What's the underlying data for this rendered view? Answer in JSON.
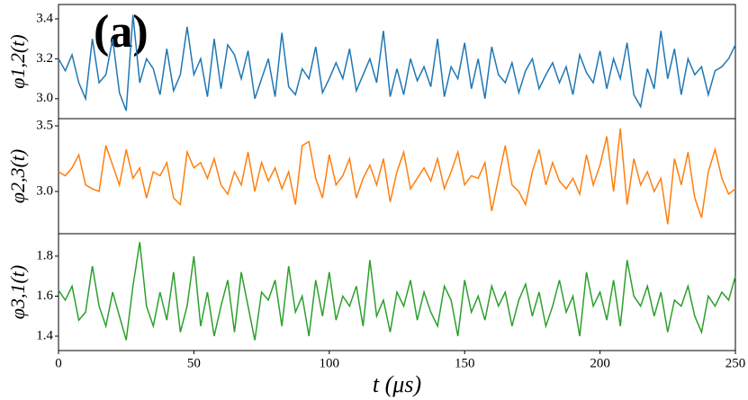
{
  "chart_data": [
    {
      "type": "line",
      "annotation": "(a)",
      "ylabel": "φ1,2(t)",
      "x": [
        0,
        2.5,
        5,
        7.5,
        10,
        12.5,
        15,
        17.5,
        20,
        22.5,
        25,
        27.5,
        30,
        32.5,
        35,
        37.5,
        40,
        42.5,
        45,
        47.5,
        50,
        52.5,
        55,
        57.5,
        60,
        62.5,
        65,
        67.5,
        70,
        72.5,
        75,
        77.5,
        80,
        82.5,
        85,
        87.5,
        90,
        92.5,
        95,
        97.5,
        100,
        102.5,
        105,
        107.5,
        110,
        112.5,
        115,
        117.5,
        120,
        122.5,
        125,
        127.5,
        130,
        132.5,
        135,
        137.5,
        140,
        142.5,
        145,
        147.5,
        150,
        152.5,
        155,
        157.5,
        160,
        162.5,
        165,
        167.5,
        170,
        172.5,
        175,
        177.5,
        180,
        182.5,
        185,
        187.5,
        190,
        192.5,
        195,
        197.5,
        200,
        202.5,
        205,
        207.5,
        210,
        212.5,
        215,
        217.5,
        220,
        222.5,
        225,
        227.5,
        230,
        232.5,
        235,
        237.5,
        240,
        242.5,
        245,
        247.5,
        250
      ],
      "series": [
        {
          "color": "#1f77b4",
          "values": [
            3.2,
            3.14,
            3.22,
            3.08,
            3.0,
            3.3,
            3.08,
            3.12,
            3.3,
            3.03,
            2.94,
            3.42,
            3.08,
            3.2,
            3.15,
            3.02,
            3.25,
            3.04,
            3.12,
            3.36,
            3.12,
            3.2,
            3.01,
            3.3,
            3.05,
            3.27,
            3.22,
            3.1,
            3.24,
            3.0,
            3.1,
            3.2,
            3.01,
            3.33,
            3.06,
            3.02,
            3.15,
            3.1,
            3.26,
            3.03,
            3.1,
            3.18,
            3.1,
            3.25,
            3.04,
            3.12,
            3.2,
            3.08,
            3.34,
            3.01,
            3.15,
            3.02,
            3.2,
            3.09,
            3.16,
            3.06,
            3.3,
            3.01,
            3.16,
            3.1,
            3.28,
            3.05,
            3.2,
            3.0,
            3.26,
            3.12,
            3.08,
            3.18,
            3.03,
            3.14,
            3.2,
            3.05,
            3.12,
            3.18,
            3.08,
            3.16,
            3.02,
            3.22,
            3.13,
            3.08,
            3.24,
            3.05,
            3.2,
            3.1,
            3.28,
            3.02,
            2.96,
            3.15,
            3.05,
            3.34,
            3.1,
            3.25,
            3.02,
            3.2,
            3.12,
            3.16,
            3.02,
            3.14,
            3.16,
            3.2,
            3.27
          ]
        }
      ],
      "xlim": [
        0,
        250
      ],
      "ylim": [
        2.9,
        3.472
      ],
      "yticks": [
        {
          "value": 3,
          "label": "3.0"
        },
        3.2,
        3.4
      ]
    },
    {
      "type": "line",
      "ylabel": "φ2,3(t)",
      "x": [
        0,
        2.5,
        5,
        7.5,
        10,
        12.5,
        15,
        17.5,
        20,
        22.5,
        25,
        27.5,
        30,
        32.5,
        35,
        37.5,
        40,
        42.5,
        45,
        47.5,
        50,
        52.5,
        55,
        57.5,
        60,
        62.5,
        65,
        67.5,
        70,
        72.5,
        75,
        77.5,
        80,
        82.5,
        85,
        87.5,
        90,
        92.5,
        95,
        97.5,
        100,
        102.5,
        105,
        107.5,
        110,
        112.5,
        115,
        117.5,
        120,
        122.5,
        125,
        127.5,
        130,
        132.5,
        135,
        137.5,
        140,
        142.5,
        145,
        147.5,
        150,
        152.5,
        155,
        157.5,
        160,
        162.5,
        165,
        167.5,
        170,
        172.5,
        175,
        177.5,
        180,
        182.5,
        185,
        187.5,
        190,
        192.5,
        195,
        197.5,
        200,
        202.5,
        205,
        207.5,
        210,
        212.5,
        215,
        217.5,
        220,
        222.5,
        225,
        227.5,
        230,
        232.5,
        235,
        237.5,
        240,
        242.5,
        245,
        247.5,
        250
      ],
      "series": [
        {
          "color": "#ff7f0e",
          "values": [
            3.15,
            3.12,
            3.18,
            3.28,
            3.05,
            3.02,
            3.0,
            3.35,
            3.2,
            3.05,
            3.32,
            3.1,
            3.18,
            2.95,
            3.15,
            3.12,
            3.22,
            2.95,
            2.9,
            3.3,
            3.18,
            3.22,
            3.1,
            3.25,
            3.05,
            2.98,
            3.15,
            3.05,
            3.3,
            3.0,
            3.22,
            3.08,
            3.18,
            3.02,
            3.15,
            2.9,
            3.35,
            3.38,
            3.1,
            2.95,
            3.28,
            3.05,
            3.12,
            3.25,
            2.95,
            3.1,
            3.2,
            3.05,
            3.25,
            2.92,
            3.15,
            3.3,
            3.02,
            3.1,
            3.18,
            3.08,
            3.25,
            3.02,
            3.15,
            3.3,
            3.05,
            3.12,
            3.1,
            3.22,
            2.85,
            3.1,
            3.35,
            3.05,
            3.0,
            2.9,
            3.15,
            3.32,
            3.05,
            3.22,
            3.08,
            3.02,
            3.1,
            2.98,
            3.28,
            3.05,
            3.2,
            3.42,
            3.0,
            3.48,
            2.9,
            3.25,
            3.05,
            3.15,
            3.0,
            3.1,
            2.75,
            3.25,
            3.05,
            3.3,
            2.95,
            2.8,
            3.15,
            3.32,
            3.1,
            2.98,
            3.02
          ]
        }
      ],
      "xlim": [
        0,
        250
      ],
      "ylim": [
        2.678,
        3.555
      ],
      "yticks": [
        {
          "value": 3,
          "label": "3.0"
        },
        3.5
      ]
    },
    {
      "type": "line",
      "ylabel": "φ3,1(t)",
      "xlabel": "t (μs)",
      "x": [
        0,
        2.5,
        5,
        7.5,
        10,
        12.5,
        15,
        17.5,
        20,
        22.5,
        25,
        27.5,
        30,
        32.5,
        35,
        37.5,
        40,
        42.5,
        45,
        47.5,
        50,
        52.5,
        55,
        57.5,
        60,
        62.5,
        65,
        67.5,
        70,
        72.5,
        75,
        77.5,
        80,
        82.5,
        85,
        87.5,
        90,
        92.5,
        95,
        97.5,
        100,
        102.5,
        105,
        107.5,
        110,
        112.5,
        115,
        117.5,
        120,
        122.5,
        125,
        127.5,
        130,
        132.5,
        135,
        137.5,
        140,
        142.5,
        145,
        147.5,
        150,
        152.5,
        155,
        157.5,
        160,
        162.5,
        165,
        167.5,
        170,
        172.5,
        175,
        177.5,
        180,
        182.5,
        185,
        187.5,
        190,
        192.5,
        195,
        197.5,
        200,
        202.5,
        205,
        207.5,
        210,
        212.5,
        215,
        217.5,
        220,
        222.5,
        225,
        227.5,
        230,
        232.5,
        235,
        237.5,
        240,
        242.5,
        245,
        247.5,
        250
      ],
      "series": [
        {
          "color": "#2ca02c",
          "values": [
            1.63,
            1.58,
            1.65,
            1.48,
            1.52,
            1.75,
            1.55,
            1.45,
            1.62,
            1.5,
            1.38,
            1.65,
            1.87,
            1.55,
            1.45,
            1.62,
            1.48,
            1.72,
            1.42,
            1.55,
            1.8,
            1.45,
            1.62,
            1.4,
            1.55,
            1.68,
            1.42,
            1.72,
            1.55,
            1.38,
            1.62,
            1.58,
            1.68,
            1.45,
            1.75,
            1.52,
            1.6,
            1.4,
            1.68,
            1.5,
            1.72,
            1.48,
            1.6,
            1.55,
            1.65,
            1.45,
            1.78,
            1.5,
            1.58,
            1.42,
            1.62,
            1.55,
            1.68,
            1.48,
            1.62,
            1.52,
            1.45,
            1.65,
            1.58,
            1.4,
            1.68,
            1.52,
            1.6,
            1.48,
            1.65,
            1.55,
            1.62,
            1.45,
            1.58,
            1.66,
            1.5,
            1.62,
            1.45,
            1.55,
            1.68,
            1.52,
            1.6,
            1.4,
            1.72,
            1.55,
            1.62,
            1.48,
            1.68,
            1.45,
            1.78,
            1.6,
            1.55,
            1.65,
            1.5,
            1.62,
            1.42,
            1.58,
            1.55,
            1.65,
            1.5,
            1.42,
            1.6,
            1.55,
            1.62,
            1.58,
            1.7
          ]
        }
      ],
      "xlim": [
        0,
        250
      ],
      "ylim": [
        1.328,
        1.912
      ],
      "yticks": [
        1.4,
        1.6,
        1.8
      ],
      "xticks": [
        0,
        50,
        100,
        150,
        200,
        250
      ]
    }
  ]
}
